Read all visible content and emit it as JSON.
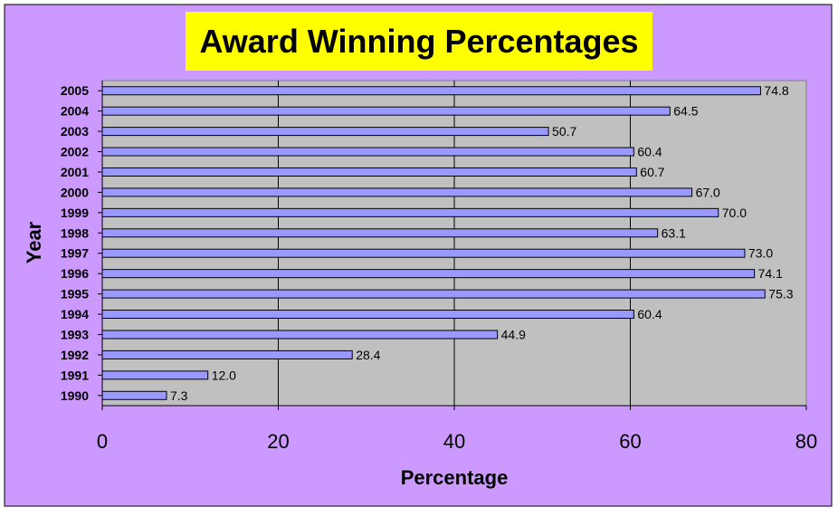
{
  "colors": {
    "background": "#cc99ff",
    "plot_area": "#c0c0c0",
    "bar": "#9999ff",
    "title_box": "#ffff00",
    "gridline": "#000000",
    "text": "#000000"
  },
  "chart_data": {
    "type": "bar",
    "orientation": "horizontal",
    "title": "Award Winning Percentages",
    "xlabel": "Percentage",
    "ylabel": "Year",
    "categories": [
      "2005",
      "2004",
      "2003",
      "2002",
      "2001",
      "2000",
      "1999",
      "1998",
      "1997",
      "1996",
      "1995",
      "1994",
      "1993",
      "1992",
      "1991",
      "1990"
    ],
    "values": [
      74.8,
      64.5,
      50.7,
      60.4,
      60.7,
      67.0,
      70.0,
      63.1,
      73.0,
      74.1,
      75.3,
      60.4,
      44.9,
      28.4,
      12.0,
      7.3
    ],
    "data_labels": [
      "74.8",
      "64.5",
      "50.7",
      "60.4",
      "60.7",
      "67.0",
      "70.0",
      "63.1",
      "73.0",
      "74.1",
      "75.3",
      "60.4",
      "44.9",
      "28.4",
      "12.0",
      "7.3"
    ],
    "xlim": [
      0,
      80
    ],
    "xticks": [
      0,
      20,
      40,
      60,
      80
    ],
    "xtick_labels": [
      "0",
      "20",
      "40",
      "60",
      "80"
    ],
    "grid": true,
    "legend": "none"
  }
}
